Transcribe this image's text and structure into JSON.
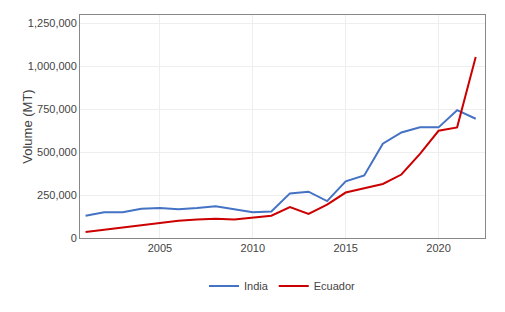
{
  "chart_data": {
    "type": "line",
    "x": [
      2001,
      2002,
      2003,
      2004,
      2005,
      2006,
      2007,
      2008,
      2009,
      2010,
      2011,
      2012,
      2013,
      2014,
      2015,
      2016,
      2017,
      2018,
      2019,
      2020,
      2021,
      2022
    ],
    "series": [
      {
        "name": "India",
        "color": "#4472c4",
        "values": [
          130000,
          150000,
          150000,
          170000,
          175000,
          168000,
          175000,
          185000,
          168000,
          150000,
          155000,
          260000,
          270000,
          215000,
          330000,
          365000,
          550000,
          615000,
          645000,
          645000,
          745000,
          695000
        ]
      },
      {
        "name": "Ecuador",
        "color": "#cc0000",
        "values": [
          35000,
          48000,
          65000,
          75000,
          88000,
          100000,
          108000,
          112000,
          108000,
          118000,
          130000,
          180000,
          140000,
          195000,
          265000,
          290000,
          315000,
          370000,
          490000,
          625000,
          645000,
          1055000
        ]
      }
    ],
    "ylabel": "Volume (MT)",
    "xlim": [
      2000.7,
      2022.5
    ],
    "xticks": [
      2005,
      2010,
      2015,
      2020
    ],
    "ylim": [
      0,
      1300000
    ],
    "yticks": [
      0,
      {
        "value": 250000,
        "label": "250,000"
      },
      {
        "value": 500000,
        "label": "500,000"
      },
      {
        "value": 750000,
        "label": "750,000"
      },
      {
        "value": 1000000,
        "label": "1,000,000"
      },
      {
        "value": 1250000,
        "label": "1,250,000"
      }
    ],
    "grid": true,
    "legend": "bottom"
  }
}
